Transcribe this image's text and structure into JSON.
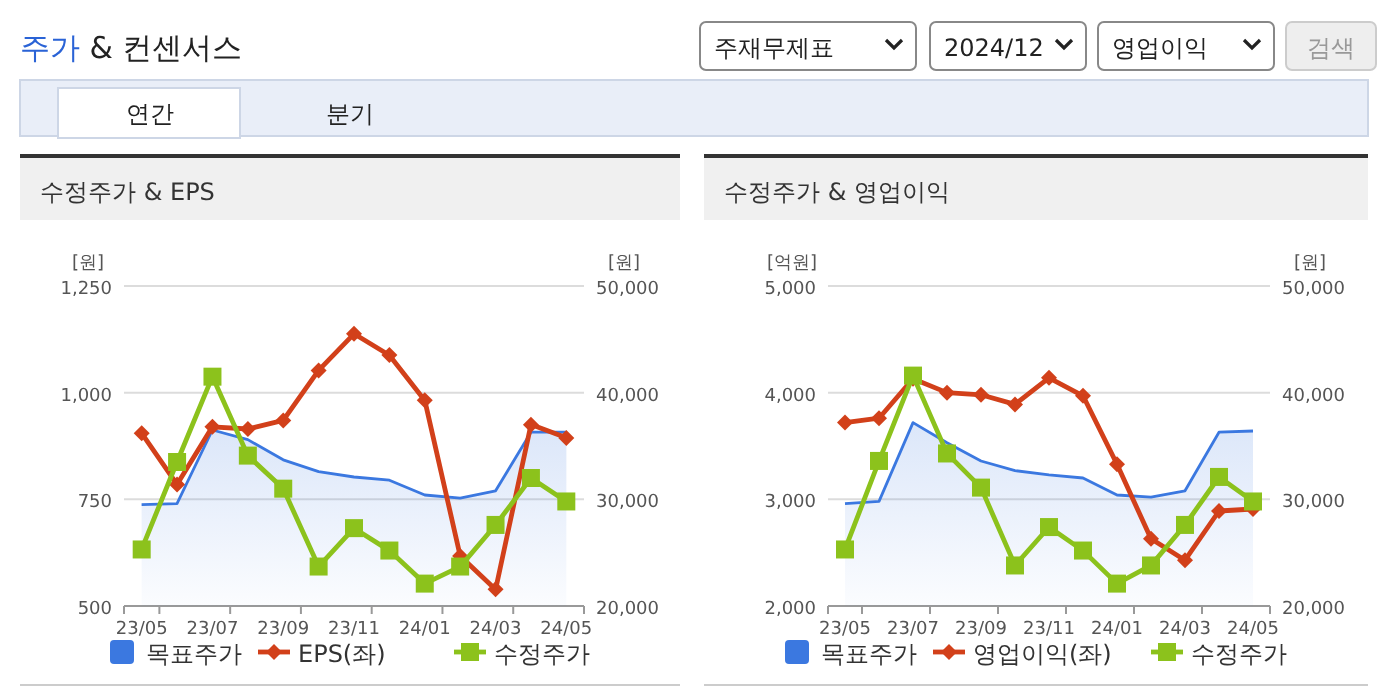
{
  "chart_data": [
    {
      "type": "other",
      "title": "주가 & 컨센서스",
      "annotations": [
        "주재무제표",
        "2024/12",
        "영업이익",
        "검색",
        "연간",
        "분기"
      ]
    },
    {
      "type": "line",
      "title": "수정주가 & EPS",
      "ylabel": "[원]",
      "y2label": "[원]",
      "categories": [
        "23/05",
        null,
        "23/07",
        null,
        "23/09",
        null,
        "23/11",
        null,
        "24/01",
        null,
        "24/03",
        null,
        "24/05"
      ],
      "ylim": [
        500,
        1250
      ],
      "yticks": [
        500,
        750,
        {
          "value": 1000,
          "label": "1,000"
        },
        {
          "value": 1250,
          "label": "1,250"
        }
      ],
      "y2lim": [
        20000,
        50000
      ],
      "y2ticks": [
        {
          "value": 20000,
          "label": "20,000"
        },
        {
          "value": 30000,
          "label": "30,000"
        },
        {
          "value": 40000,
          "label": "40,000"
        },
        {
          "value": 50000,
          "label": "50,000"
        }
      ],
      "grid": "y",
      "legend": "bottom",
      "series": [
        {
          "name": "목표주가",
          "type": "area",
          "axis": "y2",
          "color": "#3b78e0",
          "marker": "none",
          "values": [
            29500,
            29600,
            36500,
            35600,
            33700,
            32600,
            32100,
            31800,
            30400,
            30100,
            30800,
            36300,
            36300
          ]
        },
        {
          "name": "EPS(좌)",
          "type": "line",
          "color": "#d2401a",
          "marker": "diamond",
          "values": [
            905,
            785,
            920,
            915,
            935,
            1052,
            1138,
            1088,
            982,
            617,
            539,
            925,
            894
          ]
        },
        {
          "name": "수정주가",
          "type": "line",
          "axis": "y2",
          "color": "#8cc21c",
          "marker": "square",
          "values": [
            25300,
            33500,
            41500,
            34100,
            31000,
            23700,
            27300,
            25200,
            22100,
            23700,
            27600,
            32000,
            29800
          ]
        }
      ]
    },
    {
      "type": "line",
      "title": "수정주가 & 영업이익",
      "ylabel": "[억원]",
      "y2label": "[원]",
      "categories": [
        "23/05",
        null,
        "23/07",
        null,
        "23/09",
        null,
        "23/11",
        null,
        "24/01",
        null,
        "24/03",
        null,
        "24/05"
      ],
      "ylim": [
        2000,
        5000
      ],
      "yticks": [
        {
          "value": 2000,
          "label": "2,000"
        },
        {
          "value": 3000,
          "label": "3,000"
        },
        {
          "value": 4000,
          "label": "4,000"
        },
        {
          "value": 5000,
          "label": "5,000"
        }
      ],
      "y2lim": [
        20000,
        50000
      ],
      "y2ticks": [
        {
          "value": 20000,
          "label": "20,000"
        },
        {
          "value": 30000,
          "label": "30,000"
        },
        {
          "value": 40000,
          "label": "40,000"
        },
        {
          "value": 50000,
          "label": "50,000"
        }
      ],
      "grid": "y",
      "legend": "bottom",
      "series": [
        {
          "name": "목표주가",
          "type": "area",
          "axis": "y2",
          "color": "#3b78e0",
          "marker": "none",
          "values": [
            29600,
            29800,
            37200,
            35300,
            33600,
            32700,
            32300,
            32000,
            30400,
            30200,
            30800,
            36300,
            36400
          ]
        },
        {
          "name": "영업이익(좌)",
          "type": "line",
          "color": "#d2401a",
          "marker": "diamond",
          "values": [
            3720,
            3760,
            4130,
            4000,
            3980,
            3890,
            4140,
            3970,
            3330,
            2630,
            2430,
            2890,
            2910
          ]
        },
        {
          "name": "수정주가",
          "type": "line",
          "axis": "y2",
          "color": "#8cc21c",
          "marker": "square",
          "values": [
            25300,
            33600,
            41600,
            34300,
            31100,
            23800,
            27400,
            25200,
            22100,
            23800,
            27600,
            32100,
            29800
          ]
        }
      ]
    }
  ]
}
